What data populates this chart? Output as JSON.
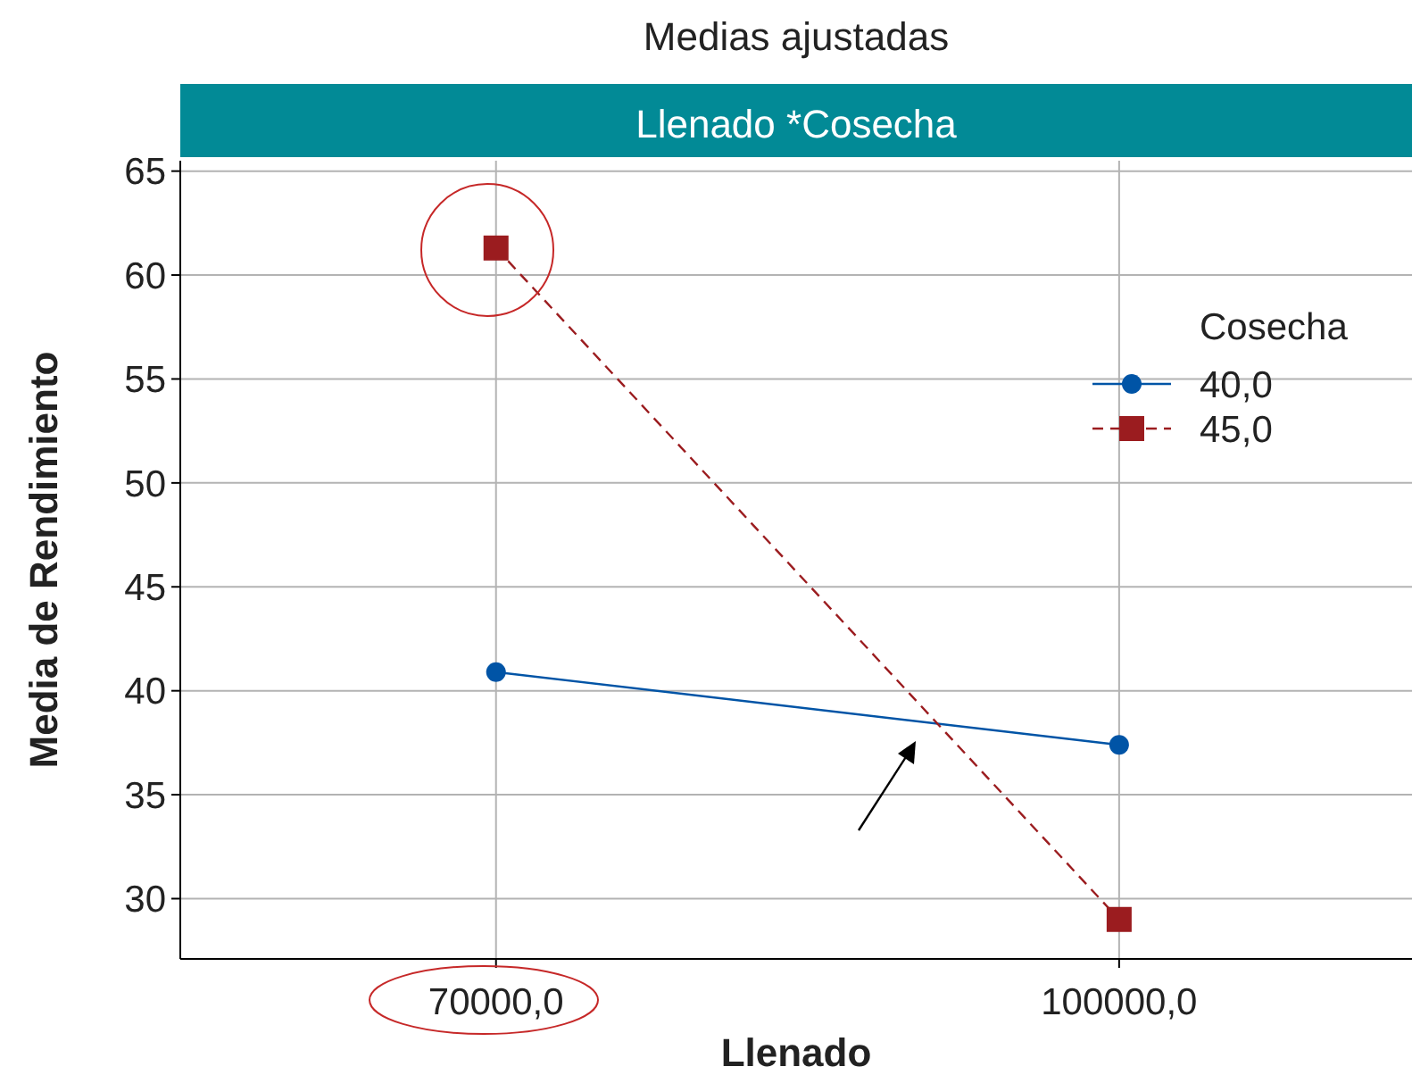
{
  "chart_data": {
    "type": "line",
    "title": "Medias ajustadas",
    "subtitle": "Llenado *Cosecha",
    "xlabel": "Llenado",
    "ylabel": "Media de Rendimiento",
    "legend_title": "Cosecha",
    "x": [
      70000,
      100000
    ],
    "series": [
      {
        "name": "40,0",
        "color": "#0054a6",
        "values": [
          40.9,
          37.4
        ],
        "marker": "circle",
        "line_style": "solid"
      },
      {
        "name": "45,0",
        "color": "#9b1c1f",
        "values": [
          61.3,
          29.0
        ],
        "marker": "square",
        "line_style": "dashed"
      }
    ],
    "xlim": [
      54800,
      114100
    ],
    "xticks": [
      {
        "value": 70000,
        "label": "70000,0"
      },
      {
        "value": 100000,
        "label": "100000,0"
      }
    ],
    "ylim": [
      27.1,
      65.5
    ],
    "yticks": [
      30,
      35,
      40,
      45,
      50,
      55,
      60,
      65
    ],
    "grid": true,
    "legend": "top right"
  }
}
